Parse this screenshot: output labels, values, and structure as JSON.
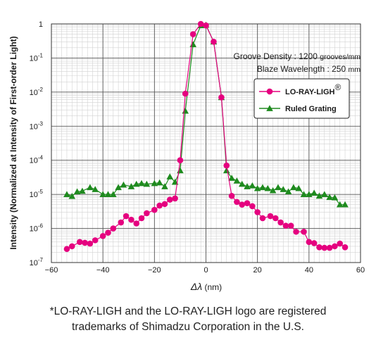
{
  "chart_data": {
    "type": "line",
    "ylabel": "Intensity (Normalized at Intensity of First-order Light)",
    "xlabel": "Δλ (nm)",
    "y_scale": "log",
    "xlim": [
      -60,
      60
    ],
    "ylim": [
      1e-07,
      1
    ],
    "x_ticks": [
      -60,
      -40,
      -20,
      0,
      20,
      40,
      60
    ],
    "x_tick_labels": [
      "−60",
      "−40",
      "−20",
      "0",
      "20",
      "40",
      "60"
    ],
    "y_ticks": [
      1e-07,
      1e-06,
      1e-05,
      0.0001,
      0.001,
      0.01,
      0.1,
      1
    ],
    "y_tick_labels": [
      {
        "base": "10",
        "exp": "-7"
      },
      {
        "base": "10",
        "exp": "-6"
      },
      {
        "base": "10",
        "exp": "-5"
      },
      {
        "base": "10",
        "exp": "-4"
      },
      {
        "base": "10",
        "exp": "-3"
      },
      {
        "base": "10",
        "exp": "-2"
      },
      {
        "base": "10",
        "exp": "-1"
      },
      {
        "base": "1",
        "exp": ""
      }
    ],
    "grid": true,
    "annotations": [
      {
        "label": "Groove Density : 1200 ",
        "unit": "grooves/mm"
      },
      {
        "label": "Blaze Wavelength : 250 ",
        "unit": "mm"
      }
    ],
    "legend_position": "right",
    "series": [
      {
        "name": "LO-RAY-LIGH",
        "name_mark": "®",
        "marker": "circle",
        "color": "#e5007f",
        "x": [
          -54,
          -52,
          -49,
          -47,
          -45,
          -43,
          -40,
          -38,
          -36,
          -33,
          -31,
          -29,
          -27,
          -25,
          -23,
          -20,
          -18,
          -16,
          -14,
          -12,
          -10,
          -8,
          -5,
          -2,
          0,
          3,
          6,
          8,
          10,
          12,
          14,
          16,
          18,
          20,
          22,
          25,
          27,
          29,
          31,
          33,
          35,
          38,
          40,
          42,
          44,
          46,
          48,
          50,
          52,
          54
        ],
        "y": [
          2.5e-07,
          3e-07,
          4e-07,
          3.8e-07,
          3.6e-07,
          4.5e-07,
          6e-07,
          7.5e-07,
          1e-06,
          1.5e-06,
          2.3e-06,
          1.8e-06,
          1.4e-06,
          2e-06,
          2.8e-06,
          3.5e-06,
          4.7e-06,
          5.2e-06,
          7e-06,
          7.6e-06,
          0.0001,
          0.009,
          0.5,
          1,
          0.9,
          0.3,
          0.007,
          7e-05,
          9e-06,
          6e-06,
          5e-06,
          5.5e-06,
          4.5e-06,
          3e-06,
          2e-06,
          2.3e-06,
          2e-06,
          1.5e-06,
          1.2e-06,
          1.2e-06,
          8e-07,
          8e-07,
          4e-07,
          3.7e-07,
          2.8e-07,
          2.7e-07,
          2.7e-07,
          3e-07,
          3.6e-07,
          2.8e-07
        ]
      },
      {
        "name": "Ruled Grating",
        "name_mark": "",
        "marker": "triangle",
        "color": "#1e8a1e",
        "x": [
          -54,
          -52,
          -50,
          -48,
          -45,
          -43,
          -40,
          -38,
          -36,
          -34,
          -32,
          -29,
          -27,
          -25,
          -23,
          -20,
          -18,
          -16,
          -14,
          -12,
          -10,
          -8,
          -5,
          -2,
          0,
          3,
          6,
          8,
          10,
          12,
          14,
          16,
          18,
          20,
          22,
          24,
          26,
          28,
          30,
          32,
          34,
          36,
          38,
          40,
          42,
          44,
          46,
          48,
          50,
          52,
          54
        ],
        "y": [
          1e-05,
          8.8e-06,
          1.2e-05,
          1.25e-05,
          1.6e-05,
          1.4e-05,
          1e-05,
          1e-05,
          1e-05,
          1.6e-05,
          1.9e-05,
          1.7e-05,
          2e-05,
          2.1e-05,
          2e-05,
          2.1e-05,
          2.2e-05,
          1.7e-05,
          3.3e-05,
          2.3e-05,
          5e-05,
          0.0028,
          0.25,
          0.9,
          0.93,
          0.3,
          0.007,
          5e-05,
          3e-05,
          2.5e-05,
          2e-05,
          1.7e-05,
          1.8e-05,
          1.5e-05,
          1.6e-05,
          1.5e-05,
          1.3e-05,
          1.6e-05,
          1.4e-05,
          1.2e-05,
          1.6e-05,
          1.5e-05,
          1e-05,
          1e-05,
          1.1e-05,
          9e-06,
          1e-05,
          8.2e-06,
          8e-06,
          5e-06,
          5e-06
        ]
      }
    ]
  },
  "footnote": {
    "line1": "*LO-RAY-LIGH and the LO-RAY-LIGH logo are registered",
    "line2": "trademarks of Shimadzu Corporation in the U.S."
  }
}
